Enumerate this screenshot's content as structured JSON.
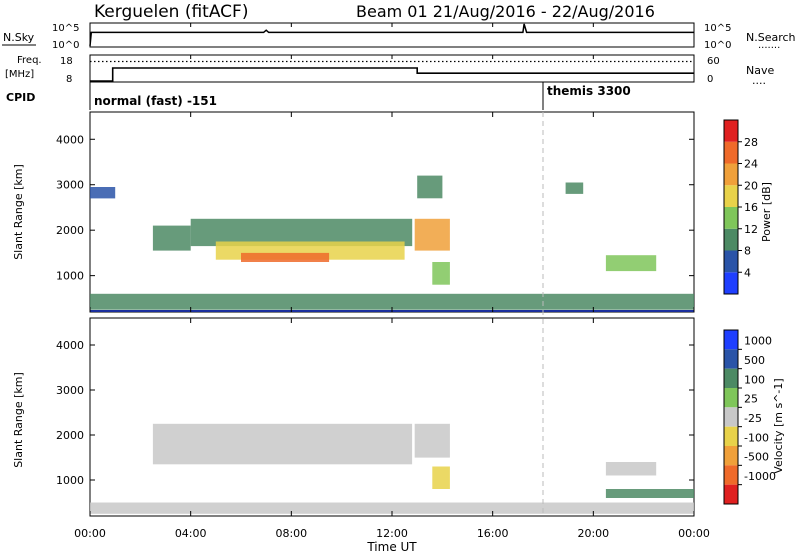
{
  "header": {
    "station": "Kerguelen (fitACF)",
    "beam_date": "Beam 01  21/Aug/2016 - 22/Aug/2016"
  },
  "noise_panel": {
    "left_label": "N.Sky",
    "right_label": "N.Search",
    "left_ticks": [
      "10^5",
      "10^0"
    ],
    "right_ticks": [
      "10^5",
      "10^0"
    ],
    "right_dots": "......."
  },
  "freq_panel": {
    "left_label_1": "Freq.",
    "left_label_2": "[MHz]",
    "right_label": "Nave",
    "right_dots": "....",
    "left_ticks": [
      "18",
      "8"
    ],
    "right_ticks": [
      "60",
      "0"
    ]
  },
  "cpid_panel": {
    "label": "CPID",
    "modes": [
      {
        "name": "normal (fast) -151",
        "start_hour": 0
      },
      {
        "name": "themis 3300",
        "start_hour": 18
      }
    ]
  },
  "x_axis": {
    "title": "Time UT",
    "ticks": [
      "00:00",
      "04:00",
      "08:00",
      "12:00",
      "16:00",
      "20:00",
      "00:00"
    ]
  },
  "power_panel": {
    "ylabel": "Slant Range [km]",
    "yticks": [
      "1000",
      "2000",
      "3000",
      "4000"
    ],
    "colorbar_label": "Power [dB]",
    "colorbar_ticks": [
      "4",
      "8",
      "12",
      "16",
      "20",
      "24",
      "28"
    ],
    "colors": [
      "#1f3fff",
      "#2a54a8",
      "#4c8a64",
      "#7fc65a",
      "#e8d24a",
      "#f0a03a",
      "#ef6a2a",
      "#e02020"
    ]
  },
  "velocity_panel": {
    "ylabel": "Slant Range [km]",
    "yticks": [
      "1000",
      "2000",
      "3000",
      "4000"
    ],
    "colorbar_label": "Velocity [m s^-1]",
    "colorbar_ticks": [
      "1000",
      "500",
      "100",
      "25",
      "-25",
      "-100",
      "-500",
      "-1000"
    ],
    "colors": [
      "#1f3fff",
      "#2a54a8",
      "#4c8a64",
      "#7fc65a",
      "#c8c8c8",
      "#e8d24a",
      "#f0a03a",
      "#ef6a2a",
      "#e02020"
    ]
  },
  "chart_data": [
    {
      "type": "line",
      "title": "N.Sky / N.Search",
      "x_unit": "hour UT",
      "series": [
        {
          "name": "N.Sky",
          "x": [
            0,
            0.05,
            6.9,
            7.0,
            7.1,
            12.0,
            17.2,
            17.25,
            17.35,
            24
          ],
          "y_log10": [
            0,
            3.1,
            3.1,
            3.6,
            3.1,
            3.1,
            3.1,
            5,
            3.1,
            3.1
          ]
        }
      ]
    },
    {
      "type": "line",
      "title": "Freq. [MHz] / Nave",
      "x_unit": "hour UT",
      "ylim": [
        8,
        18
      ],
      "series": [
        {
          "name": "Freq.",
          "x": [
            0,
            0.9,
            0.9,
            13.0,
            13.0,
            24
          ],
          "y": [
            8,
            8,
            13,
            13,
            11,
            11
          ]
        },
        {
          "name": "Nave",
          "x": [
            0,
            0.9,
            0.9,
            13.0,
            13.0,
            24
          ],
          "y": [
            45,
            45,
            45,
            45,
            45,
            45
          ]
        }
      ]
    },
    {
      "type": "heatmap",
      "title": "Power [dB]",
      "x_unit": "hour UT",
      "y_unit": "km",
      "ylim": [
        200,
        4600
      ],
      "blobs": [
        {
          "x": [
            0.0,
            1.0
          ],
          "y": [
            2700,
            2950
          ],
          "value": 6
        },
        {
          "x": [
            2.5,
            4.0
          ],
          "y": [
            1550,
            2100
          ],
          "value": 8
        },
        {
          "x": [
            4.0,
            12.8
          ],
          "y": [
            1650,
            2250
          ],
          "value": 10
        },
        {
          "x": [
            5.0,
            12.5
          ],
          "y": [
            1350,
            1750
          ],
          "value": 18
        },
        {
          "x": [
            6.0,
            9.5
          ],
          "y": [
            1300,
            1500
          ],
          "value": 24
        },
        {
          "x": [
            12.9,
            14.3
          ],
          "y": [
            1550,
            2250
          ],
          "value": 20
        },
        {
          "x": [
            13.6,
            14.3
          ],
          "y": [
            800,
            1300
          ],
          "value": 14
        },
        {
          "x": [
            13.0,
            14.0
          ],
          "y": [
            2700,
            3200
          ],
          "value": 8
        },
        {
          "x": [
            18.9,
            19.6
          ],
          "y": [
            2800,
            3050
          ],
          "value": 10
        },
        {
          "x": [
            20.5,
            22.5
          ],
          "y": [
            1100,
            1450
          ],
          "value": 12
        },
        {
          "x": [
            0.0,
            24.0
          ],
          "y": [
            250,
            600
          ],
          "value": 8
        }
      ]
    },
    {
      "type": "heatmap",
      "title": "Velocity [m s^-1]",
      "x_unit": "hour UT",
      "y_unit": "km",
      "ylim": [
        200,
        4600
      ],
      "blobs": [
        {
          "x": [
            2.5,
            12.8
          ],
          "y": [
            1350,
            2250
          ],
          "value": 0
        },
        {
          "x": [
            12.9,
            14.3
          ],
          "y": [
            1500,
            2250
          ],
          "value": 0
        },
        {
          "x": [
            13.6,
            14.3
          ],
          "y": [
            800,
            1300
          ],
          "value": -100
        },
        {
          "x": [
            20.5,
            22.5
          ],
          "y": [
            1100,
            1400
          ],
          "value": 0
        },
        {
          "x": [
            20.5,
            24.0
          ],
          "y": [
            600,
            800
          ],
          "value": 100
        },
        {
          "x": [
            0.0,
            24.0
          ],
          "y": [
            250,
            500
          ],
          "value": 0
        }
      ]
    }
  ]
}
